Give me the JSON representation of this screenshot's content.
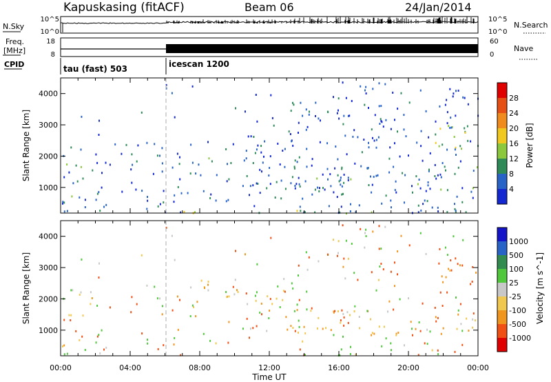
{
  "header": {
    "station": "Kapuskasing (fitACF)",
    "beam": "Beam 06",
    "date": "24/Jan/2014"
  },
  "noise_panel": {
    "left_label": "N.Sky",
    "left_ticks": [
      "10^5",
      "10^0"
    ],
    "right_ticks": [
      "10^5",
      "10^0"
    ],
    "right_label": "N.Search"
  },
  "freq_panel": {
    "left_label_1": "Freq.",
    "left_label_2": "[MHz]",
    "left_ticks": [
      "18",
      "8"
    ],
    "right_ticks": [
      "60",
      "0"
    ],
    "right_label": "Nave"
  },
  "cpid": {
    "label": "CPID",
    "modes": [
      {
        "name": "tau (fast) 503",
        "start_hour": 0,
        "end_hour": 6
      },
      {
        "name": "icescan 1200",
        "start_hour": 6,
        "end_hour": 24
      }
    ]
  },
  "colors": {
    "power": [
      "#1428d2",
      "#2864c8",
      "#2e8b57",
      "#8cc83c",
      "#f0c81e",
      "#f08c1e",
      "#e65014",
      "#e10000"
    ],
    "velocity": [
      "#e10000",
      "#f05014",
      "#f0961e",
      "#f0c850",
      "#c8c8c8",
      "#50c83c",
      "#328c50",
      "#2864c8",
      "#1414c8"
    ]
  },
  "chart_data": [
    {
      "type": "heatmap",
      "title": "",
      "xlabel": "",
      "ylabel": "Slant Range [km]",
      "x_unit": "hours UT",
      "xlim": [
        0,
        24
      ],
      "ylim": [
        180,
        4500
      ],
      "x_ticks": [
        "00:00",
        "04:00",
        "08:00",
        "12:00",
        "16:00",
        "20:00",
        "00:00"
      ],
      "y_ticks": [
        "1000",
        "2000",
        "3000",
        "4000"
      ],
      "colorbar": {
        "label": "Power [dB]",
        "ticks": [
          "4",
          "8",
          "12",
          "16",
          "20",
          "24",
          "28"
        ],
        "range": [
          0,
          30
        ]
      },
      "features": [
        {
          "hours": [
            0.3,
            1.3
          ],
          "range_km": [
            650,
            2100
          ],
          "power_db": 10
        },
        {
          "hours": [
            7.5,
            10.5
          ],
          "range_km": [
            1750,
            2250
          ],
          "power_db": 9
        },
        {
          "hours": [
            10.5,
            12.8
          ],
          "range_km": [
            1800,
            2700
          ],
          "power_db": 6
        },
        {
          "hours": [
            12.8,
            24.0
          ],
          "range_km": [
            900,
            1700
          ],
          "power_db": 8
        },
        {
          "hours": [
            21.5,
            24.0
          ],
          "range_km": [
            2200,
            3200
          ],
          "power_db": 14
        },
        {
          "hours": [
            6.0,
            24.0
          ],
          "range_km": [
            180,
            300
          ],
          "power_db": 12
        }
      ]
    },
    {
      "type": "heatmap",
      "title": "",
      "xlabel": "Time UT",
      "ylabel": "Slant Range [km]",
      "x_unit": "hours UT",
      "xlim": [
        0,
        24
      ],
      "ylim": [
        180,
        4500
      ],
      "x_ticks": [
        "00:00",
        "04:00",
        "08:00",
        "12:00",
        "16:00",
        "20:00",
        "00:00"
      ],
      "y_ticks": [
        "1000",
        "2000",
        "3000",
        "4000"
      ],
      "colorbar": {
        "label": "Velocity [m s^-1]",
        "ticks": [
          "1000",
          "500",
          "100",
          "25",
          "-25",
          "-100",
          "-500",
          "-1000"
        ]
      },
      "features": [
        {
          "hours": [
            0.3,
            1.3
          ],
          "range_km": [
            650,
            1500
          ],
          "velocity_ms": -150
        },
        {
          "hours": [
            0.3,
            1.8
          ],
          "range_km": [
            1500,
            2500
          ],
          "velocity_ms": 0
        },
        {
          "hours": [
            7.5,
            12.8
          ],
          "range_km": [
            1750,
            2700
          ],
          "velocity_ms": 0
        },
        {
          "hours": [
            12.8,
            24.0
          ],
          "range_km": [
            900,
            1700
          ],
          "velocity_ms": 0
        },
        {
          "hours": [
            21.5,
            24.0
          ],
          "range_km": [
            2200,
            3200
          ],
          "velocity_ms": -120
        }
      ]
    }
  ]
}
